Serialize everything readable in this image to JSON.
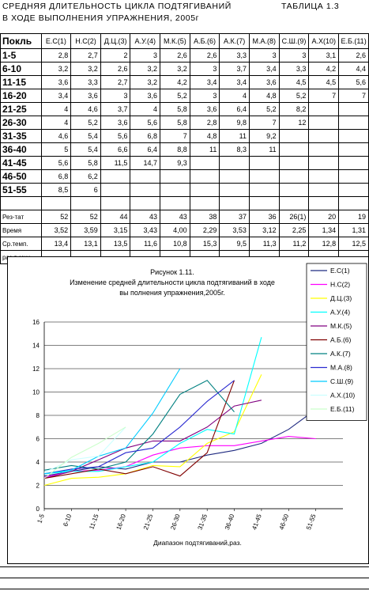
{
  "sheet": {
    "title_line1": "СРЕДНЯЯ ДЛИТЕЛЬНОСТЬ ЦИКЛА ПОДТЯГИВАНИЙ",
    "title_line2": "В ХОДЕ ВЫПОЛНЕНИЯ УПРАЖНЕНИЯ, 2005г",
    "table_label": "ТАБЛИЦА 1.3",
    "corner_label": "Покль",
    "columns": [
      "Е.С(1)",
      "Н.С(2)",
      "Д.Ц.(3)",
      "А.У.(4)",
      "М.К.(5)",
      "А.Б.(6)",
      "А.К.(7)",
      "М.А.(8)",
      "С.Ш.(9)",
      "А.Х(10)",
      "Е.Б.(11)"
    ],
    "rows": [
      {
        "label": "1-5",
        "cells": [
          "2,8",
          "2,7",
          "2",
          "3",
          "2,6",
          "2,6",
          "3,3",
          "3",
          "3",
          "3,1",
          "2,6"
        ]
      },
      {
        "label": "6-10",
        "cells": [
          "3,2",
          "3,2",
          "2,6",
          "3,2",
          "3,2",
          "3",
          "3,7",
          "3,4",
          "3,3",
          "4,2",
          "4,4"
        ]
      },
      {
        "label": "11-15",
        "cells": [
          "3,6",
          "3,3",
          "2,7",
          "3,2",
          "4,2",
          "3,4",
          "3,4",
          "3,6",
          "4,5",
          "4,5",
          "5,6"
        ]
      },
      {
        "label": "16-20",
        "cells": [
          "3,4",
          "3,6",
          "3",
          "3,6",
          "5,2",
          "3",
          "4",
          "4,8",
          "5,2",
          "7",
          "7"
        ]
      },
      {
        "label": "21-25",
        "cells": [
          "4",
          "4,6",
          "3,7",
          "4",
          "5,8",
          "3,6",
          "6,4",
          "5,2",
          "8,2",
          "",
          ""
        ]
      },
      {
        "label": "26-30",
        "cells": [
          "4",
          "5,2",
          "3,6",
          "5,6",
          "5,8",
          "2,8",
          "9,8",
          "7",
          "12",
          "",
          ""
        ]
      },
      {
        "label": "31-35",
        "cells": [
          "4,6",
          "5,4",
          "5,6",
          "6,8",
          "7",
          "4,8",
          "11",
          "9,2",
          "",
          "",
          ""
        ]
      },
      {
        "label": "36-40",
        "cells": [
          "5",
          "5,4",
          "6,6",
          "6,4",
          "8,8",
          "11",
          "8,3",
          "11",
          "",
          "",
          ""
        ]
      },
      {
        "label": "41-45",
        "cells": [
          "5,6",
          "5,8",
          "11,5",
          "14,7",
          "9,3",
          "",
          "",
          "",
          "",
          "",
          ""
        ]
      },
      {
        "label": "46-50",
        "cells": [
          "6,8",
          "6,2",
          "",
          "",
          "",
          "",
          "",
          "",
          "",
          "",
          ""
        ]
      },
      {
        "label": "51-55",
        "cells": [
          "8,5",
          "6",
          "",
          "",
          "",
          "",
          "",
          "",
          "",
          "",
          ""
        ]
      }
    ],
    "summary": [
      {
        "label": "Рез-тат",
        "cells": [
          "52",
          "52",
          "44",
          "43",
          "43",
          "38",
          "37",
          "36",
          "26(1)",
          "20",
          "19"
        ]
      },
      {
        "label": "Время",
        "cells": [
          "3,52",
          "3,59",
          "3,15",
          "3,43",
          "4,00",
          "2,29",
          "3,53",
          "3,12",
          "2,25",
          "1,34",
          "1,31"
        ]
      },
      {
        "label": "Ср.темп.",
        "cells": [
          "13,4",
          "13,1",
          "13,5",
          "11,6",
          "10,8",
          "15,3",
          "9,5",
          "11,3",
          "11,2",
          "12,8",
          "12,5"
        ]
      },
      {
        "label": "раз в мин",
        "cells": [
          "",
          "",
          "",
          "",
          "",
          "",
          "",
          "",
          "",
          "",
          ""
        ]
      }
    ]
  },
  "chart_data": {
    "type": "line",
    "title_line1": "Рисунок 1.11.",
    "title_line2": "Изменение средней длительности цикла подтягиваний в ходе",
    "title_line3": "вы полнения упражнения,2005г.",
    "xlabel": "Диапазон подтягиваний,раз.",
    "ylabel": "",
    "ylim": [
      0,
      16
    ],
    "yticks": [
      0,
      2,
      4,
      6,
      8,
      10,
      12,
      14,
      16
    ],
    "grid": true,
    "legend_position": "right",
    "categories": [
      "1-5",
      "6-10",
      "11-15",
      "16-20",
      "21-25",
      "26-30",
      "31-35",
      "36-40",
      "41-45",
      "46-50",
      "51-55"
    ],
    "series": [
      {
        "name": "Е.С(1)",
        "color": "#1f2a80",
        "values": [
          2.8,
          3.2,
          3.6,
          3.4,
          4,
          4,
          4.6,
          5,
          5.6,
          6.8,
          8.5
        ]
      },
      {
        "name": "Н.С(2)",
        "color": "#ff00ff",
        "values": [
          2.7,
          3.2,
          3.3,
          3.6,
          4.6,
          5.2,
          5.4,
          5.4,
          5.8,
          6.2,
          6
        ]
      },
      {
        "name": "Д.Ц.(3)",
        "color": "#ffff00",
        "values": [
          2,
          2.6,
          2.7,
          3,
          3.7,
          3.6,
          5.6,
          6.6,
          11.5,
          null,
          null
        ]
      },
      {
        "name": "А.У.(4)",
        "color": "#00ffff",
        "values": [
          3,
          3.2,
          3.2,
          3.6,
          4,
          5.6,
          6.8,
          6.4,
          14.7,
          null,
          null
        ]
      },
      {
        "name": "М.К.(5)",
        "color": "#800080",
        "values": [
          2.6,
          3.2,
          4.2,
          5.2,
          5.8,
          5.8,
          7,
          8.8,
          9.3,
          null,
          null
        ]
      },
      {
        "name": "А.Б.(6)",
        "color": "#800000",
        "values": [
          2.6,
          3,
          3.4,
          3,
          3.6,
          2.8,
          4.8,
          11,
          null,
          null,
          null
        ]
      },
      {
        "name": "А.К.(7)",
        "color": "#008080",
        "values": [
          3.3,
          3.7,
          3.4,
          4,
          6.4,
          9.8,
          11,
          8.3,
          null,
          null,
          null
        ]
      },
      {
        "name": "М.А.(8)",
        "color": "#2a2ad0",
        "values": [
          3,
          3.4,
          3.6,
          4.8,
          5.2,
          7,
          9.2,
          11,
          null,
          null,
          null
        ]
      },
      {
        "name": "С.Ш.(9)",
        "color": "#00ccff",
        "values": [
          3,
          3.3,
          4.5,
          5.2,
          8.2,
          12,
          null,
          null,
          null,
          null,
          null
        ]
      },
      {
        "name": "А.Х.(10)",
        "color": "#ccffff",
        "values": [
          3.1,
          4.2,
          4.5,
          7,
          null,
          null,
          null,
          null,
          null,
          null,
          null
        ]
      },
      {
        "name": "Е.Б.(11)",
        "color": "#ccffcc",
        "values": [
          2.6,
          4.4,
          5.6,
          7,
          null,
          null,
          null,
          null,
          null,
          null,
          null
        ]
      }
    ]
  }
}
